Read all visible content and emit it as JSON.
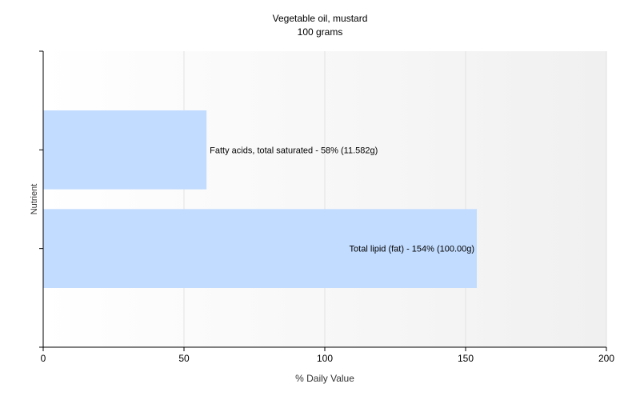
{
  "chart_data": {
    "type": "bar",
    "orientation": "horizontal",
    "title": "Vegetable oil, mustard",
    "subtitle": "100 grams",
    "xlabel": "% Daily Value",
    "ylabel": "Nutrient",
    "xlim": [
      0,
      200
    ],
    "xticks": [
      0,
      50,
      100,
      150,
      200
    ],
    "grid": "vertical",
    "bar_color": "#c2dcff",
    "categories": [
      "Fatty acids, total saturated",
      "Total lipid (fat)"
    ],
    "values": [
      58,
      154
    ],
    "data_labels": [
      "Fatty acids, total saturated - 58% (11.582g)",
      "Total lipid (fat) - 154% (100.00g)"
    ]
  }
}
